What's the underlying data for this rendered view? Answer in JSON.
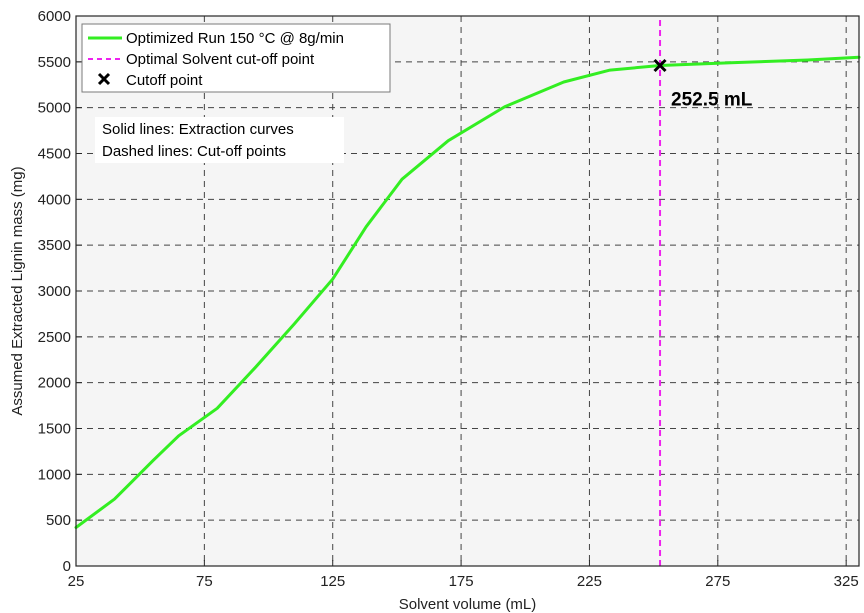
{
  "chart_data": {
    "type": "line",
    "xlabel": "Solvent volume (mL)",
    "ylabel": "Assumed Extracted Lignin mass (mg)",
    "xlim": [
      25,
      330
    ],
    "ylim": [
      0,
      6000
    ],
    "x_ticks": [
      25,
      75,
      125,
      175,
      225,
      275,
      325
    ],
    "y_ticks": [
      0,
      500,
      1000,
      1500,
      2000,
      2500,
      3000,
      3500,
      4000,
      4500,
      5000,
      5500,
      6000
    ],
    "grid": true,
    "legend_position": "top-left",
    "series": [
      {
        "name": "Optimized Run 150 °C @ 8g/min",
        "color": "#33ee22",
        "style": "solid",
        "x": [
          25,
          40,
          55,
          65,
          80,
          95,
          110,
          125,
          138,
          152,
          170,
          192,
          215,
          233,
          252.5,
          280,
          310,
          330
        ],
        "y": [
          420,
          730,
          1150,
          1420,
          1720,
          2170,
          2640,
          3130,
          3700,
          4220,
          4640,
          5010,
          5280,
          5410,
          5460,
          5490,
          5520,
          5550
        ]
      },
      {
        "name": "Optimal Solvent cut-off point",
        "color": "#ee22ee",
        "style": "dashed",
        "x": [
          252.5,
          252.5
        ],
        "y": [
          0,
          6000
        ]
      }
    ],
    "markers": [
      {
        "name": "Cutoff point",
        "x": 252.5,
        "y": 5460,
        "symbol": "x",
        "color": "#000000"
      }
    ],
    "annotations": [
      {
        "text": "252.5 mL",
        "x": 252.5,
        "y": 5460
      }
    ],
    "notes": [
      "Solid lines: Extraction curves",
      "Dashed lines: Cut-off points"
    ]
  }
}
